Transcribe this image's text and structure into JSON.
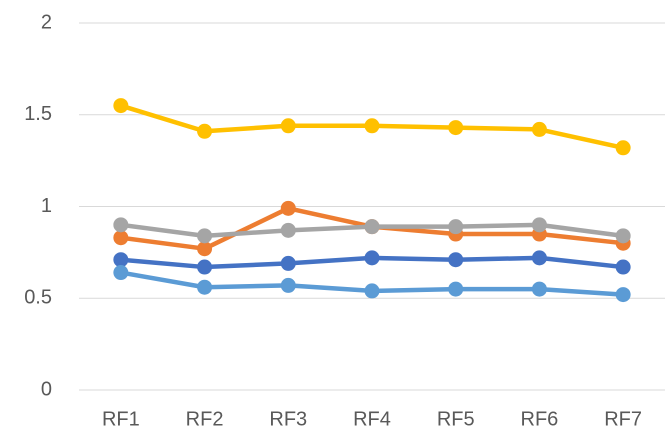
{
  "chart_data": {
    "type": "line",
    "categories": [
      "RF1",
      "RF2",
      "RF3",
      "RF4",
      "RF5",
      "RF6",
      "RF7"
    ],
    "series": [
      {
        "color": "#4472c4",
        "values": [
          0.71,
          0.67,
          0.69,
          0.72,
          0.71,
          0.72,
          0.67
        ]
      },
      {
        "color": "#ed7d31",
        "values": [
          0.83,
          0.77,
          0.99,
          0.89,
          0.85,
          0.85,
          0.8
        ]
      },
      {
        "color": "#a5a5a5",
        "values": [
          0.9,
          0.84,
          0.87,
          0.89,
          0.89,
          0.9,
          0.84
        ]
      },
      {
        "color": "#ffc000",
        "values": [
          1.55,
          1.41,
          1.44,
          1.44,
          1.43,
          1.42,
          1.32
        ]
      },
      {
        "color": "#5b9bd5",
        "values": [
          0.64,
          0.56,
          0.57,
          0.54,
          0.55,
          0.55,
          0.52
        ]
      }
    ],
    "ylim": [
      0,
      2
    ],
    "yticks": [
      0,
      0.5,
      1,
      1.5,
      2
    ],
    "grid": true
  }
}
